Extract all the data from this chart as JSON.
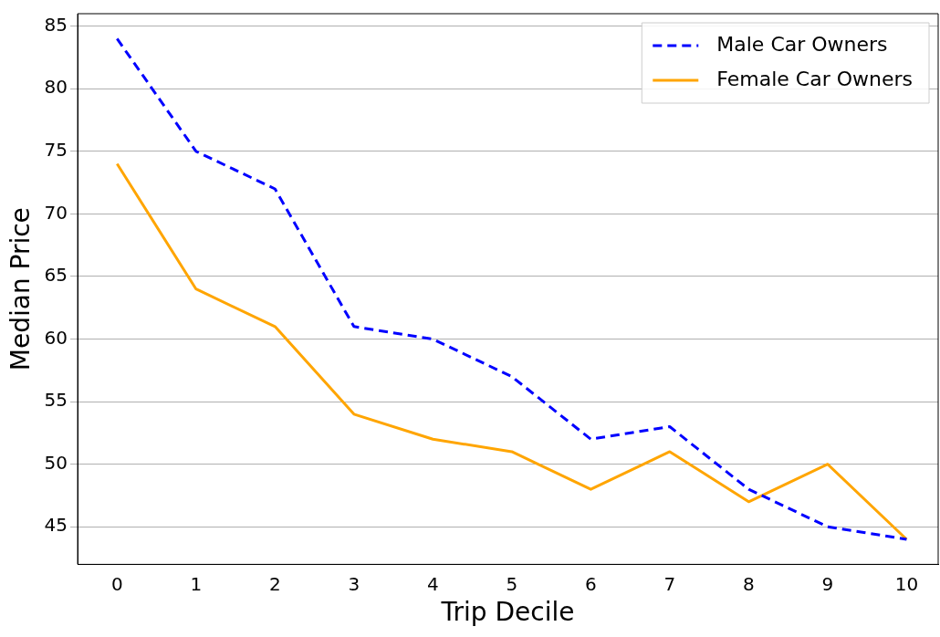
{
  "chart_data": {
    "type": "line",
    "xlabel": "Trip Decile",
    "ylabel": "Median Price",
    "x": [
      0,
      1,
      2,
      3,
      4,
      5,
      6,
      7,
      8,
      9,
      10
    ],
    "series": [
      {
        "name": "Male Car Owners",
        "color": "#0000ff",
        "line_style": "dashed",
        "values": [
          84,
          75,
          72,
          61,
          60,
          57,
          52,
          53,
          48,
          45,
          44
        ]
      },
      {
        "name": "Female Car Owners",
        "color": "#ffa500",
        "line_style": "solid",
        "values": [
          74,
          64,
          61,
          54,
          52,
          51,
          48,
          51,
          47,
          50,
          44
        ]
      }
    ],
    "xlim": [
      -0.5,
      10.4
    ],
    "xticks": [
      0,
      1,
      2,
      3,
      4,
      5,
      6,
      7,
      8,
      9,
      10
    ],
    "ylim": [
      42,
      86
    ],
    "yticks": [
      45,
      50,
      55,
      60,
      65,
      70,
      75,
      80,
      85
    ],
    "grid": "y",
    "legend": "top right",
    "marker": "none"
  }
}
